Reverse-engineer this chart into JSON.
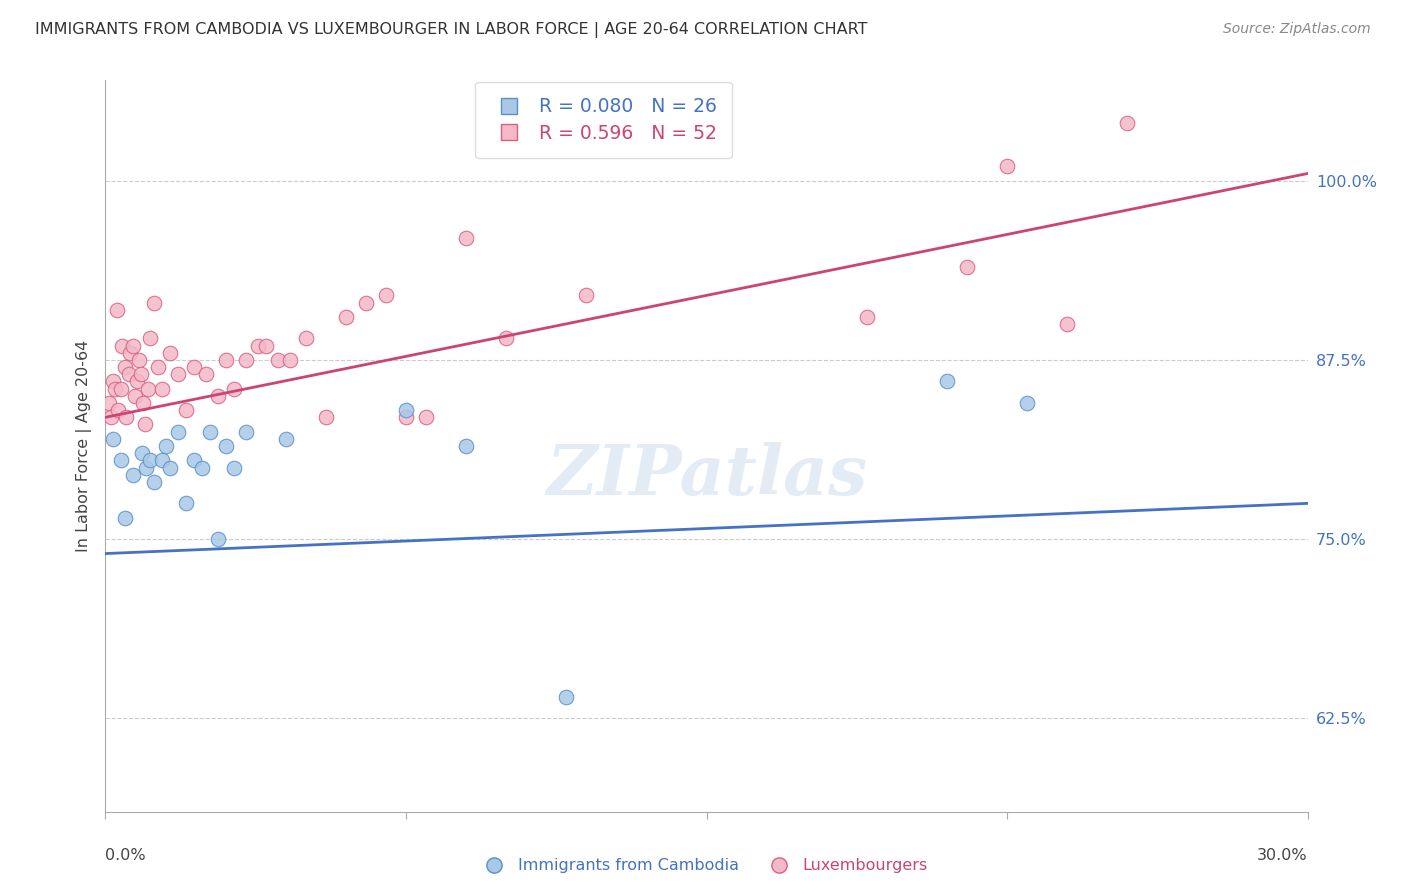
{
  "title": "IMMIGRANTS FROM CAMBODIA VS LUXEMBOURGER IN LABOR FORCE | AGE 20-64 CORRELATION CHART",
  "source": "Source: ZipAtlas.com",
  "ylabel": "In Labor Force | Age 20-64",
  "legend_blue_r": "R = 0.080",
  "legend_blue_n": "N = 26",
  "legend_pink_r": "R = 0.596",
  "legend_pink_n": "N = 52",
  "xmin": 0.0,
  "xmax": 30.0,
  "ymin": 56.0,
  "ymax": 107.0,
  "right_yticks": [
    62.5,
    75.0,
    87.5,
    100.0
  ],
  "blue_color": "#a8c8e8",
  "blue_edge_color": "#5a90c8",
  "blue_line_color": "#4472c4",
  "pink_color": "#f4b8c8",
  "pink_edge_color": "#d86080",
  "pink_line_color": "#cc4472",
  "blue_scatter_x": [
    0.2,
    0.4,
    0.5,
    0.7,
    0.9,
    1.0,
    1.1,
    1.2,
    1.4,
    1.5,
    1.6,
    1.8,
    2.0,
    2.2,
    2.4,
    2.6,
    2.8,
    3.0,
    3.2,
    3.5,
    4.5,
    7.5,
    9.0,
    11.5,
    21.0,
    23.0
  ],
  "blue_scatter_y": [
    82.0,
    80.5,
    76.5,
    79.5,
    81.0,
    80.0,
    80.5,
    79.0,
    80.5,
    81.5,
    80.0,
    82.5,
    77.5,
    80.5,
    80.0,
    82.5,
    75.0,
    81.5,
    80.0,
    82.5,
    82.0,
    84.0,
    81.5,
    64.0,
    86.0,
    84.5
  ],
  "pink_scatter_x": [
    0.1,
    0.15,
    0.2,
    0.25,
    0.28,
    0.32,
    0.38,
    0.42,
    0.48,
    0.52,
    0.58,
    0.62,
    0.68,
    0.73,
    0.78,
    0.83,
    0.88,
    0.93,
    0.98,
    1.05,
    1.12,
    1.2,
    1.3,
    1.4,
    1.6,
    1.8,
    2.0,
    2.2,
    2.5,
    2.8,
    3.0,
    3.2,
    3.5,
    3.8,
    4.0,
    4.3,
    4.6,
    5.0,
    5.5,
    6.0,
    6.5,
    7.0,
    7.5,
    8.0,
    9.0,
    10.0,
    12.0,
    19.0,
    21.5,
    22.5,
    24.0,
    25.5
  ],
  "pink_scatter_y": [
    84.5,
    83.5,
    86.0,
    85.5,
    91.0,
    84.0,
    85.5,
    88.5,
    87.0,
    83.5,
    86.5,
    88.0,
    88.5,
    85.0,
    86.0,
    87.5,
    86.5,
    84.5,
    83.0,
    85.5,
    89.0,
    91.5,
    87.0,
    85.5,
    88.0,
    86.5,
    84.0,
    87.0,
    86.5,
    85.0,
    87.5,
    85.5,
    87.5,
    88.5,
    88.5,
    87.5,
    87.5,
    89.0,
    83.5,
    90.5,
    91.5,
    92.0,
    83.5,
    83.5,
    96.0,
    89.0,
    92.0,
    90.5,
    94.0,
    101.0,
    90.0,
    104.0
  ],
  "watermark": "ZIPatlas",
  "blue_trend": [
    74.0,
    77.5
  ],
  "pink_trend": [
    83.5,
    100.5
  ]
}
